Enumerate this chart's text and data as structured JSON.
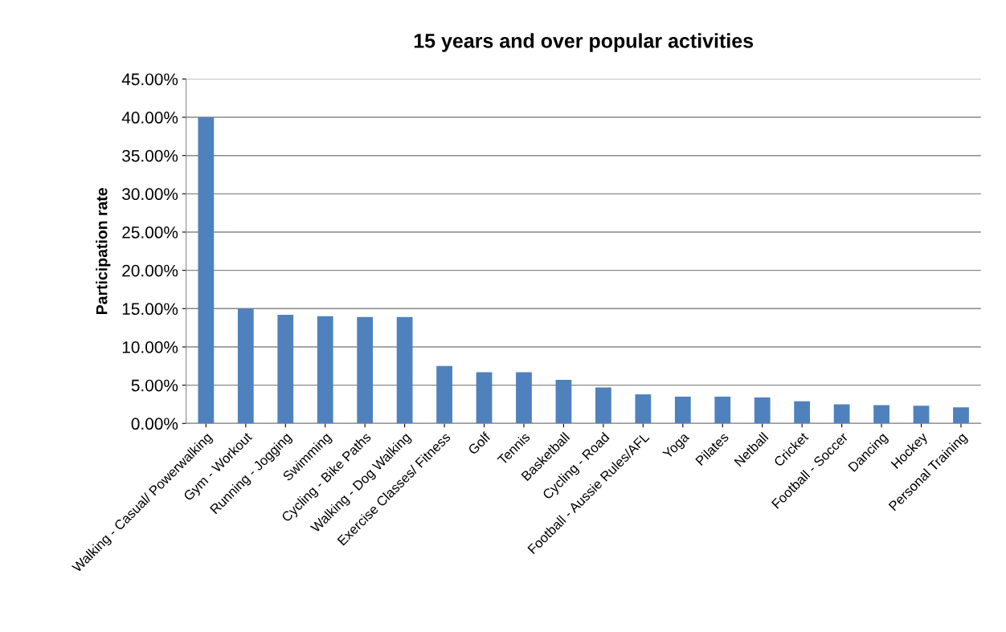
{
  "chart_data": {
    "type": "bar",
    "title": "15 years and over popular activities",
    "ylabel": "Participation rate",
    "categories": [
      "Walking - Casual/ Powerwalking",
      "Gym - Workout",
      "Running - Jogging",
      "Swimming",
      "Cycling - Bike Paths",
      "Walking - Dog Walking",
      "Exercise Classes/ Fitness",
      "Golf",
      "Tennis",
      "Basketball",
      "Cycling - Road",
      "Football - Aussie Rules/AFL",
      "Yoga",
      "Pilates",
      "Netball",
      "Cricket",
      "Football - Soccer",
      "Dancing",
      "Hockey",
      "Personal Training"
    ],
    "values": [
      40.0,
      15.0,
      14.2,
      14.0,
      13.9,
      13.9,
      7.5,
      6.7,
      6.7,
      5.7,
      4.7,
      3.8,
      3.5,
      3.5,
      3.4,
      2.9,
      2.5,
      2.4,
      2.3,
      2.1
    ],
    "color": "#4f81bd",
    "ylim": [
      0,
      45
    ],
    "yticks": [
      {
        "value": 0,
        "label": "0.00%"
      },
      {
        "value": 5,
        "label": "5.00%"
      },
      {
        "value": 10,
        "label": "10.00%"
      },
      {
        "value": 15,
        "label": "15.00%"
      },
      {
        "value": 20,
        "label": "20.00%"
      },
      {
        "value": 25,
        "label": "25.00%"
      },
      {
        "value": 30,
        "label": "30.00%"
      },
      {
        "value": 35,
        "label": "35.00%"
      },
      {
        "value": 40,
        "label": "40.00%"
      },
      {
        "value": 45,
        "label": "45.00%"
      }
    ],
    "grid": "y",
    "legend": false
  }
}
